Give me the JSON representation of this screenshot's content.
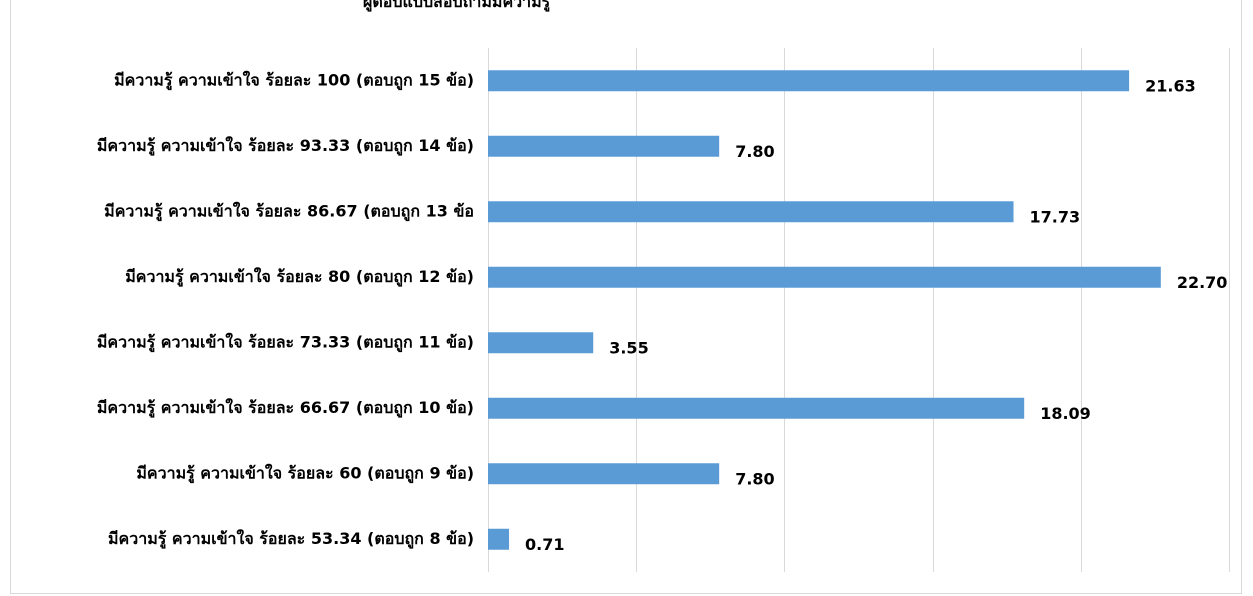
{
  "chart_data": {
    "type": "bar",
    "orientation": "horizontal",
    "title": "ผู้ตอบแบบสอบถามมีความรู้",
    "categories": [
      "มีความรู้ ความเข้าใจ ร้อยละ 100 (ตอบถูก 15 ข้อ)",
      "มีความรู้ ความเข้าใจ ร้อยละ 93.33 (ตอบถูก 14 ข้อ)",
      "มีความรู้ ความเข้าใจ ร้อยละ 86.67 (ตอบถูก 13 ข้อ",
      "มีความรู้ ความเข้าใจ ร้อยละ 80 (ตอบถูก 12 ข้อ)",
      "มีความรู้ ความเข้าใจ ร้อยละ 73.33 (ตอบถูก 11 ข้อ)",
      "มีความรู้ ความเข้าใจ ร้อยละ 66.67 (ตอบถูก 10 ข้อ)",
      "มีความรู้ ความเข้าใจ ร้อยละ 60 (ตอบถูก 9 ข้อ)",
      "มีความรู้ ความเข้าใจ ร้อยละ 53.34 (ตอบถูก 8 ข้อ)"
    ],
    "values": [
      21.63,
      7.8,
      17.73,
      22.7,
      3.55,
      18.09,
      7.8,
      0.71
    ],
    "value_labels": [
      "21.63",
      "7.80",
      "17.73",
      "22.70",
      "3.55",
      "18.09",
      "7.80",
      "0.71"
    ],
    "xlim": [
      0,
      25
    ],
    "grid": true,
    "legend": "none",
    "bar_color": "#5b9bd5",
    "grid_color": "#d9d9d9"
  }
}
